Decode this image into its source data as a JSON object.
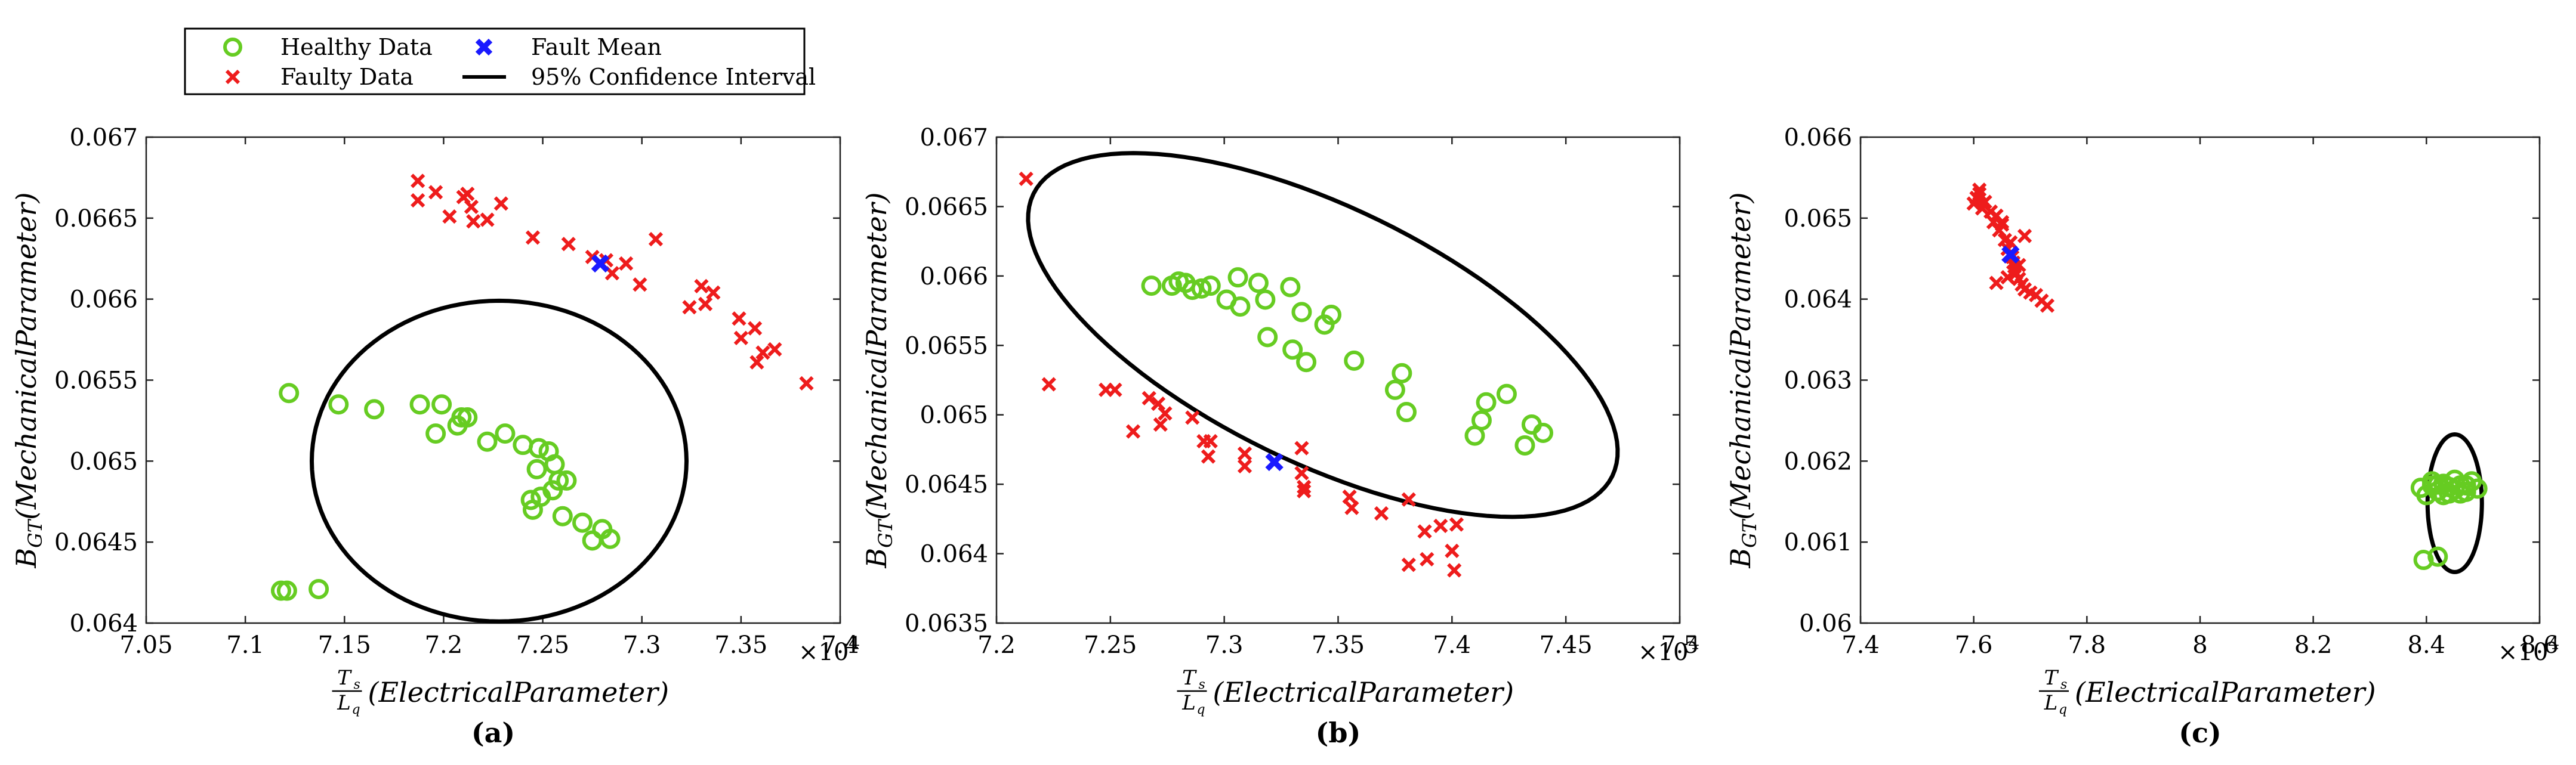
{
  "legend": {
    "items": [
      {
        "label": "Healthy Data",
        "marker": "circle",
        "color": "#66cc22"
      },
      {
        "label": "Fault Mean",
        "marker": "x-bold",
        "color": "#1a1aff"
      },
      {
        "label": "Faulty Data",
        "marker": "x",
        "color": "#ee1c1c"
      },
      {
        "label": "95% Confidence Interval",
        "marker": "line",
        "color": "#000000"
      }
    ]
  },
  "colors": {
    "healthy": "#66cc22",
    "faulty": "#ee1c1c",
    "mean": "#1a1aff",
    "ellipse": "#000000"
  },
  "chart_data": [
    {
      "type": "scatter",
      "panel_label": "(a)",
      "xlabel_frac": "Ts/Lq",
      "xlabel_frac_top": "T",
      "xlabel_frac_top_sub": "s",
      "xlabel_frac_bottom": "L",
      "xlabel_frac_bottom_sub": "q",
      "xlabel": "(ElectricalParameter)",
      "ylabel": "B",
      "ylabel_sub": "GT",
      "ylabel_rest": "(MechanicalParameter)",
      "x_exponent_text": "×10",
      "x_exponent": "-4",
      "xlim": [
        7.05,
        7.4
      ],
      "ylim": [
        0.064,
        0.067
      ],
      "xticks": [
        7.05,
        7.1,
        7.15,
        7.2,
        7.25,
        7.3,
        7.35,
        7.4
      ],
      "xticklabels": [
        "7.05",
        "7.1",
        "7.15",
        "7.2",
        "7.25",
        "7.3",
        "7.35",
        "7.4"
      ],
      "yticks": [
        0.064,
        0.0645,
        0.065,
        0.0655,
        0.066,
        0.0665,
        0.067
      ],
      "yticklabels": [
        "0.064",
        "0.0645",
        "0.065",
        "0.0655",
        "0.066",
        "0.0665",
        "0.067"
      ],
      "healthy": [
        [
          7.122,
          0.06542
        ],
        [
          7.147,
          0.06535
        ],
        [
          7.165,
          0.06532
        ],
        [
          7.188,
          0.06535
        ],
        [
          7.196,
          0.06517
        ],
        [
          7.199,
          0.06535
        ],
        [
          7.207,
          0.06522
        ],
        [
          7.209,
          0.06527
        ],
        [
          7.212,
          0.06527
        ],
        [
          7.222,
          0.06512
        ],
        [
          7.231,
          0.06517
        ],
        [
          7.24,
          0.0651
        ],
        [
          7.244,
          0.06476
        ],
        [
          7.245,
          0.0647
        ],
        [
          7.247,
          0.06495
        ],
        [
          7.248,
          0.06508
        ],
        [
          7.249,
          0.06478
        ],
        [
          7.253,
          0.06506
        ],
        [
          7.255,
          0.06482
        ],
        [
          7.256,
          0.06498
        ],
        [
          7.258,
          0.06488
        ],
        [
          7.26,
          0.06466
        ],
        [
          7.262,
          0.06488
        ],
        [
          7.27,
          0.06462
        ],
        [
          7.275,
          0.06451
        ],
        [
          7.28,
          0.06458
        ],
        [
          7.284,
          0.06452
        ],
        [
          7.118,
          0.0642
        ],
        [
          7.121,
          0.0642
        ],
        [
          7.137,
          0.06421
        ]
      ],
      "faulty": [
        [
          7.187,
          0.06673
        ],
        [
          7.187,
          0.06661
        ],
        [
          7.196,
          0.06666
        ],
        [
          7.203,
          0.06651
        ],
        [
          7.21,
          0.06663
        ],
        [
          7.212,
          0.06665
        ],
        [
          7.214,
          0.06657
        ],
        [
          7.215,
          0.06648
        ],
        [
          7.222,
          0.06649
        ],
        [
          7.229,
          0.06659
        ],
        [
          7.245,
          0.06638
        ],
        [
          7.263,
          0.06634
        ],
        [
          7.275,
          0.06626
        ],
        [
          7.282,
          0.06624
        ],
        [
          7.285,
          0.06616
        ],
        [
          7.292,
          0.06622
        ],
        [
          7.299,
          0.06609
        ],
        [
          7.307,
          0.06637
        ],
        [
          7.324,
          0.06595
        ],
        [
          7.33,
          0.06608
        ],
        [
          7.332,
          0.06597
        ],
        [
          7.336,
          0.06604
        ],
        [
          7.349,
          0.06588
        ],
        [
          7.35,
          0.06576
        ],
        [
          7.357,
          0.06582
        ],
        [
          7.358,
          0.06561
        ],
        [
          7.361,
          0.06567
        ],
        [
          7.367,
          0.06569
        ],
        [
          7.383,
          0.06548
        ]
      ],
      "mean": [
        7.279,
        0.06622
      ],
      "ellipse": {
        "cx": 7.228,
        "cy": 0.065,
        "rx": 0.0945,
        "ry": 0.00099,
        "angle_deg": 0
      }
    },
    {
      "type": "scatter",
      "panel_label": "(b)",
      "xlabel_frac": "Ts/Lq",
      "xlabel_frac_top": "T",
      "xlabel_frac_top_sub": "s",
      "xlabel_frac_bottom": "L",
      "xlabel_frac_bottom_sub": "q",
      "xlabel": "(ElectricalParameter)",
      "ylabel": "B",
      "ylabel_sub": "GT",
      "ylabel_rest": "(MechanicalParameter)",
      "x_exponent_text": "×10",
      "x_exponent": "-4",
      "xlim": [
        7.2,
        7.5
      ],
      "ylim": [
        0.0635,
        0.067
      ],
      "xticks": [
        7.2,
        7.25,
        7.3,
        7.35,
        7.4,
        7.45,
        7.5
      ],
      "xticklabels": [
        "7.2",
        "7.25",
        "7.3",
        "7.35",
        "7.4",
        "7.45",
        "7.5"
      ],
      "yticks": [
        0.0635,
        0.064,
        0.0645,
        0.065,
        0.0655,
        0.066,
        0.0665,
        0.067
      ],
      "yticklabels": [
        "0.0635",
        "0.064",
        "0.0645",
        "0.065",
        "0.0655",
        "0.066",
        "0.0665",
        "0.067"
      ],
      "healthy": [
        [
          7.268,
          0.06593
        ],
        [
          7.277,
          0.06593
        ],
        [
          7.28,
          0.06596
        ],
        [
          7.283,
          0.06595
        ],
        [
          7.286,
          0.0659
        ],
        [
          7.29,
          0.06591
        ],
        [
          7.294,
          0.06593
        ],
        [
          7.301,
          0.06583
        ],
        [
          7.306,
          0.06599
        ],
        [
          7.307,
          0.06578
        ],
        [
          7.315,
          0.06595
        ],
        [
          7.318,
          0.06583
        ],
        [
          7.319,
          0.06556
        ],
        [
          7.329,
          0.06592
        ],
        [
          7.33,
          0.06547
        ],
        [
          7.334,
          0.06574
        ],
        [
          7.336,
          0.06538
        ],
        [
          7.344,
          0.06565
        ],
        [
          7.347,
          0.06572
        ],
        [
          7.357,
          0.06539
        ],
        [
          7.375,
          0.06518
        ],
        [
          7.378,
          0.0653
        ],
        [
          7.38,
          0.06502
        ],
        [
          7.41,
          0.06485
        ],
        [
          7.413,
          0.06496
        ],
        [
          7.415,
          0.06509
        ],
        [
          7.424,
          0.06515
        ],
        [
          7.432,
          0.06478
        ],
        [
          7.435,
          0.06493
        ],
        [
          7.44,
          0.06487
        ]
      ],
      "faulty": [
        [
          7.213,
          0.0667
        ],
        [
          7.223,
          0.06522
        ],
        [
          7.248,
          0.06518
        ],
        [
          7.252,
          0.06518
        ],
        [
          7.26,
          0.06488
        ],
        [
          7.267,
          0.06512
        ],
        [
          7.271,
          0.06508
        ],
        [
          7.272,
          0.06493
        ],
        [
          7.274,
          0.06501
        ],
        [
          7.286,
          0.06498
        ],
        [
          7.291,
          0.06481
        ],
        [
          7.293,
          0.0647
        ],
        [
          7.294,
          0.06481
        ],
        [
          7.309,
          0.06463
        ],
        [
          7.309,
          0.06472
        ],
        [
          7.334,
          0.06476
        ],
        [
          7.334,
          0.06458
        ],
        [
          7.335,
          0.06448
        ],
        [
          7.335,
          0.06445
        ],
        [
          7.355,
          0.06441
        ],
        [
          7.356,
          0.06433
        ],
        [
          7.369,
          0.06429
        ],
        [
          7.381,
          0.06439
        ],
        [
          7.381,
          0.06392
        ],
        [
          7.388,
          0.06416
        ],
        [
          7.389,
          0.06396
        ],
        [
          7.395,
          0.0642
        ],
        [
          7.4,
          0.06402
        ],
        [
          7.401,
          0.06388
        ],
        [
          7.402,
          0.06421
        ]
      ],
      "mean": [
        7.322,
        0.06466
      ],
      "ellipse": {
        "cx": 7.3433,
        "cy": 0.065575,
        "rx": 0.1414,
        "ry": 0.00092,
        "angle_deg": -26
      }
    },
    {
      "type": "scatter",
      "panel_label": "(c)",
      "xlabel_frac": "Ts/Lq",
      "xlabel_frac_top": "T",
      "xlabel_frac_top_sub": "s",
      "xlabel_frac_bottom": "L",
      "xlabel_frac_bottom_sub": "q",
      "xlabel": "(ElectricalParameter)",
      "ylabel": "B",
      "ylabel_sub": "GT",
      "ylabel_rest": "(MechanicalParameter)",
      "x_exponent_text": "×10",
      "x_exponent": "-4",
      "xlim": [
        7.4,
        8.6
      ],
      "ylim": [
        0.06,
        0.066
      ],
      "xticks": [
        7.4,
        7.6,
        7.8,
        8.0,
        8.2,
        8.4,
        8.6
      ],
      "xticklabels": [
        "7.4",
        "7.6",
        "7.8",
        "8",
        "8.2",
        "8.4",
        "8.6"
      ],
      "yticks": [
        0.06,
        0.061,
        0.062,
        0.063,
        0.064,
        0.065,
        0.066
      ],
      "yticklabels": [
        "0.06",
        "0.061",
        "0.062",
        "0.063",
        "0.064",
        "0.065",
        "0.066"
      ],
      "healthy": [
        [
          8.39,
          0.06167
        ],
        [
          8.4,
          0.06158
        ],
        [
          8.41,
          0.0617
        ],
        [
          8.42,
          0.06163
        ],
        [
          8.43,
          0.06172
        ],
        [
          8.44,
          0.06168
        ],
        [
          8.45,
          0.06165
        ],
        [
          8.46,
          0.0617
        ],
        [
          8.47,
          0.06162
        ],
        [
          8.48,
          0.06175
        ],
        [
          8.49,
          0.06166
        ],
        [
          8.43,
          0.06158
        ],
        [
          8.45,
          0.06177
        ],
        [
          8.46,
          0.0616
        ],
        [
          8.41,
          0.06175
        ],
        [
          8.44,
          0.0616
        ],
        [
          8.47,
          0.0617
        ],
        [
          8.42,
          0.06171
        ],
        [
          8.395,
          0.06078
        ],
        [
          8.42,
          0.06082
        ]
      ],
      "faulty": [
        [
          7.6,
          0.06518
        ],
        [
          7.605,
          0.06525
        ],
        [
          7.61,
          0.0653
        ],
        [
          7.615,
          0.06512
        ],
        [
          7.62,
          0.0652
        ],
        [
          7.63,
          0.06508
        ],
        [
          7.635,
          0.06495
        ],
        [
          7.64,
          0.06503
        ],
        [
          7.645,
          0.06485
        ],
        [
          7.65,
          0.06492
        ],
        [
          7.655,
          0.06473
        ],
        [
          7.66,
          0.06462
        ],
        [
          7.665,
          0.0647
        ],
        [
          7.668,
          0.06452
        ],
        [
          7.67,
          0.06445
        ],
        [
          7.672,
          0.0644
        ],
        [
          7.675,
          0.06432
        ],
        [
          7.68,
          0.06425
        ],
        [
          7.685,
          0.06418
        ],
        [
          7.69,
          0.06412
        ],
        [
          7.7,
          0.06408
        ],
        [
          7.71,
          0.06405
        ],
        [
          7.72,
          0.06398
        ],
        [
          7.73,
          0.06392
        ],
        [
          7.64,
          0.0642
        ],
        [
          7.66,
          0.06427
        ],
        [
          7.68,
          0.06442
        ],
        [
          7.69,
          0.06478
        ],
        [
          7.61,
          0.06535
        ],
        [
          7.65,
          0.06495
        ]
      ],
      "mean": [
        7.665,
        0.06455
      ],
      "ellipse": {
        "cx": 8.45,
        "cy": 0.06148,
        "rx": 0.048,
        "ry": 0.00085,
        "angle_deg": 0
      }
    }
  ]
}
